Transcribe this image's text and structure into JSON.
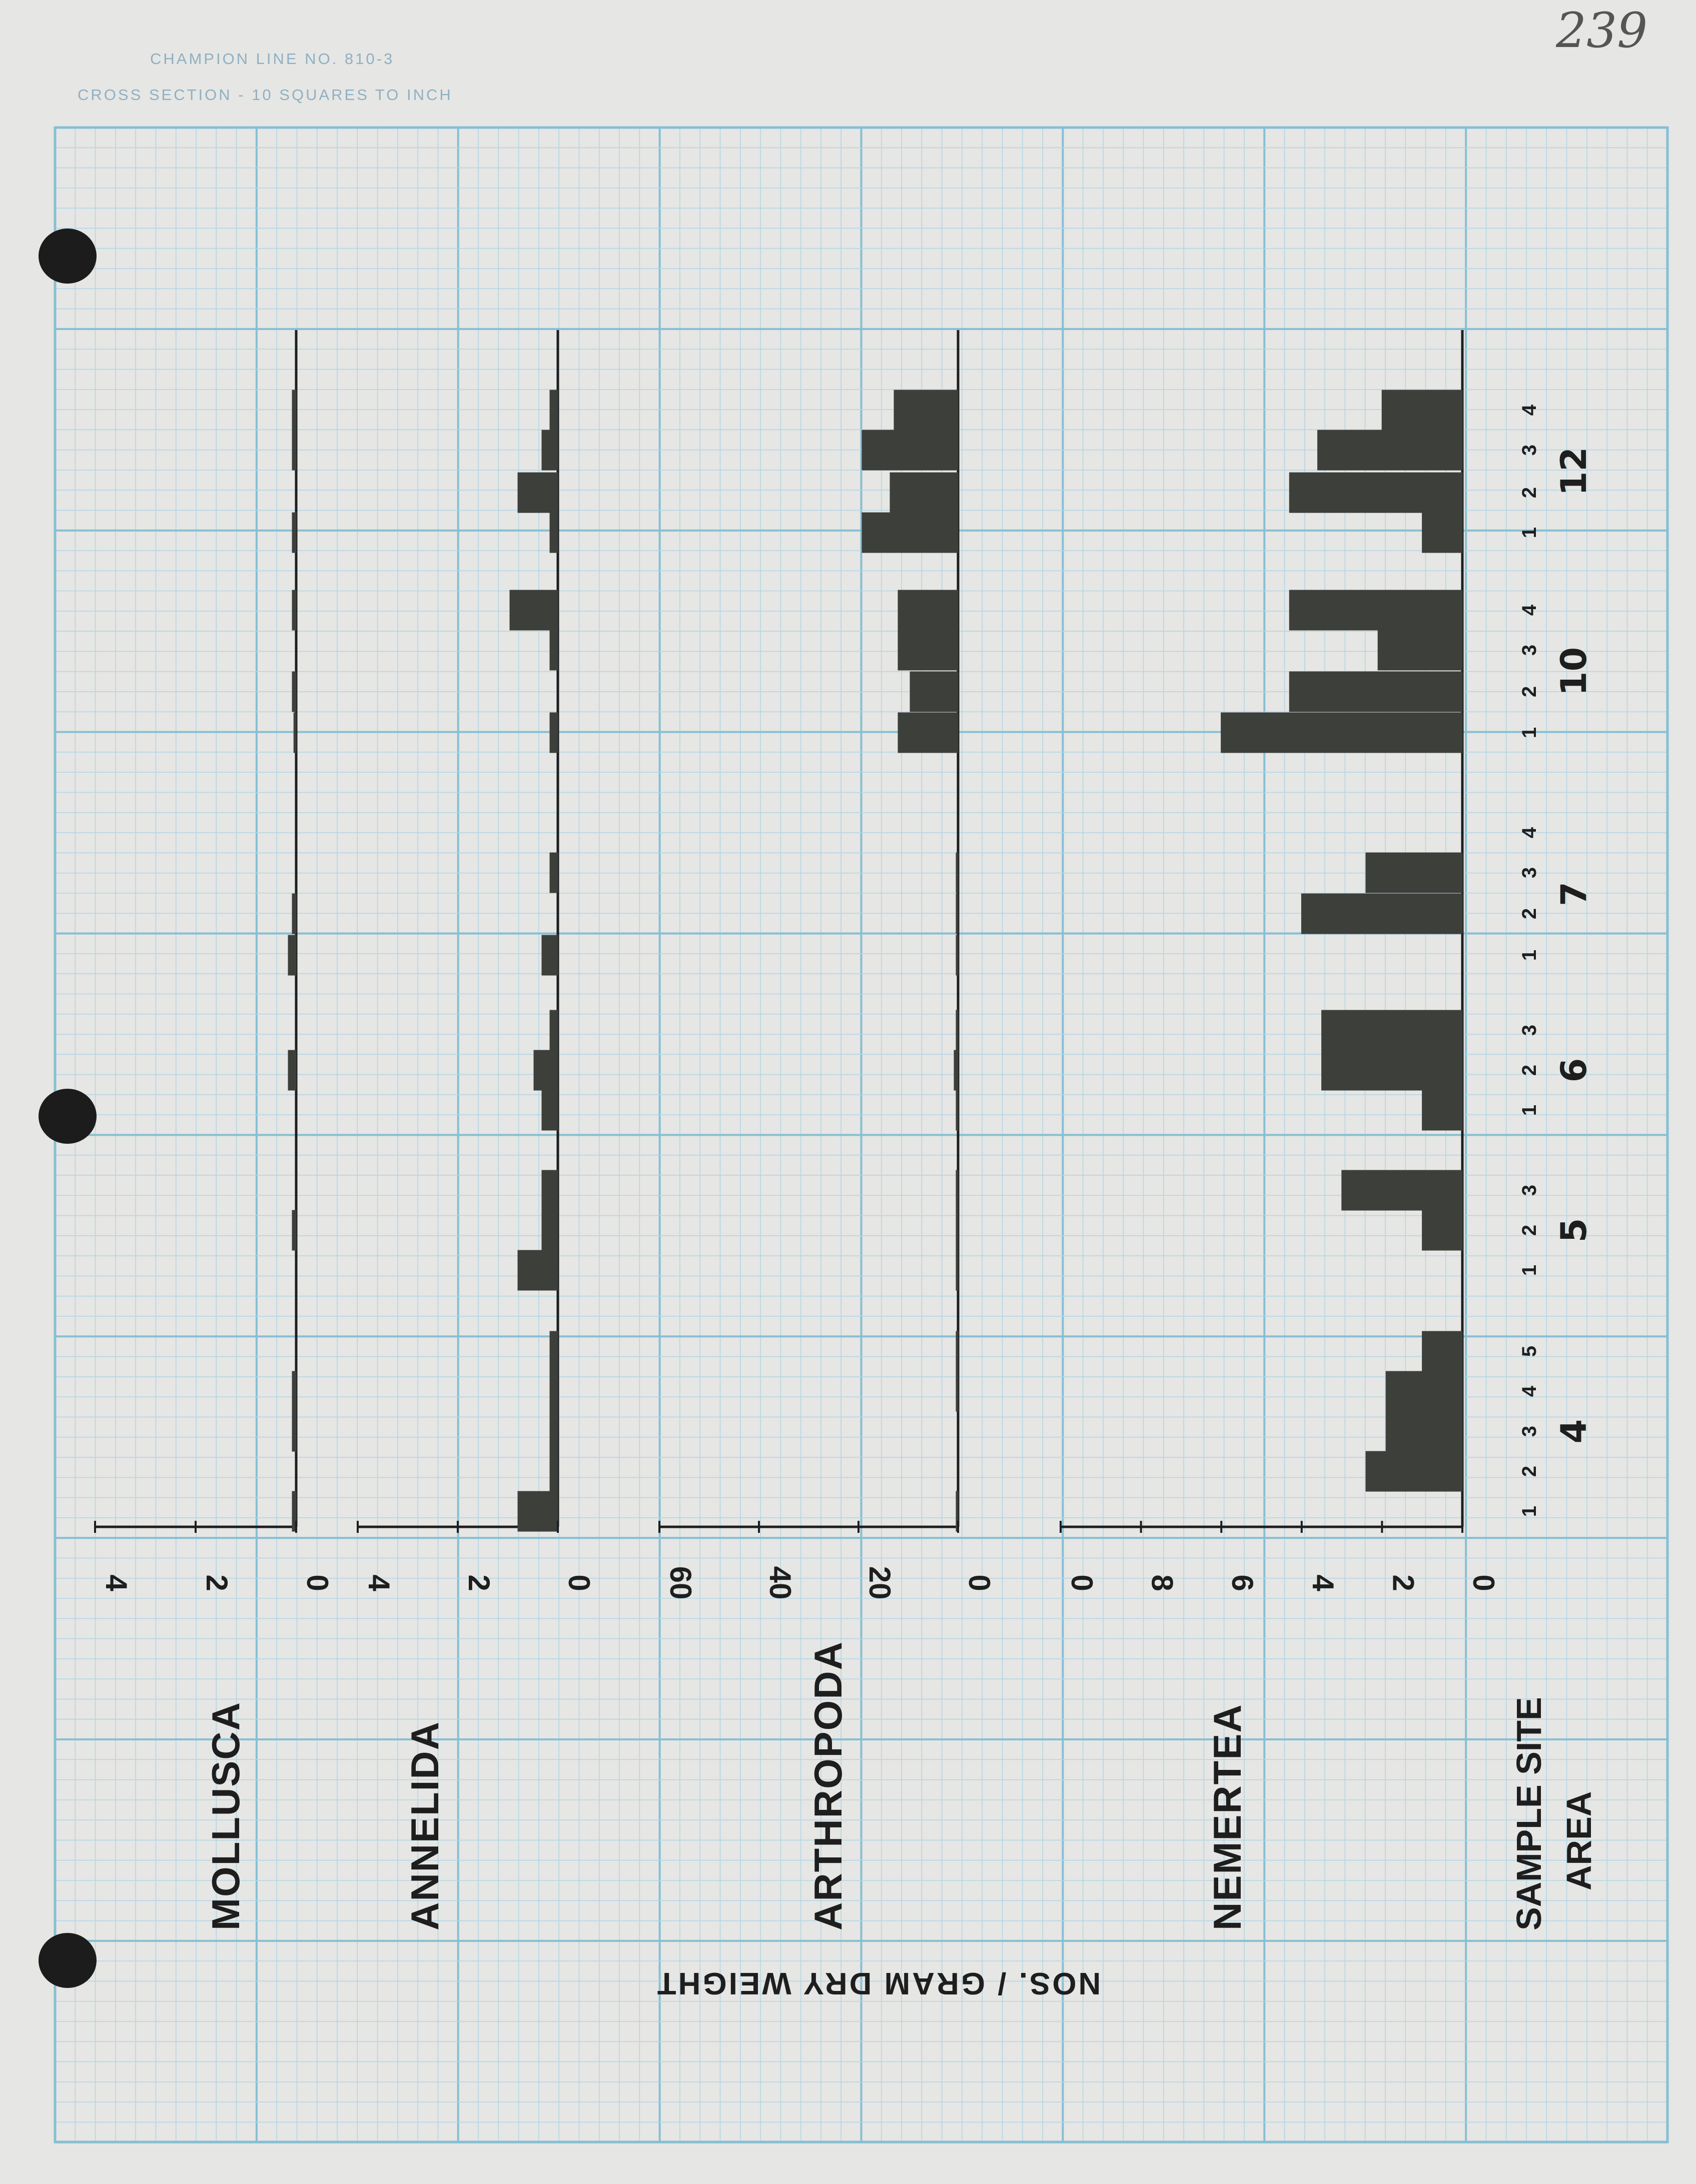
{
  "header": {
    "line1": "CHAMPION LINE NO. 810-3",
    "line2": "CROSS SECTION - 10 SQUARES TO INCH",
    "page_number": "239"
  },
  "colors": {
    "paper": "#e6e6e4",
    "grid_minor": "#b3d6e3",
    "grid_major": "#86bfd3",
    "ink": "#1e1e1e",
    "bar_fill": "#3d3f3b"
  },
  "y_axis_label": "NOS. / GRAM DRY WEIGHT",
  "x_axis": {
    "label_line1": "SAMPLE SITE",
    "label_line2": "AREA"
  },
  "chart_data": {
    "type": "bar",
    "orientation": "rotated-90",
    "y_axis_label": "NOS. / GRAM DRY WEIGHT",
    "x_axis_label": "SAMPLE SITE / AREA",
    "areas": [
      {
        "area": "4",
        "sites": [
          "1",
          "2",
          "3",
          "4",
          "5"
        ]
      },
      {
        "area": "5",
        "sites": [
          "1",
          "2",
          "3"
        ]
      },
      {
        "area": "6",
        "sites": [
          "1",
          "2",
          "3"
        ]
      },
      {
        "area": "7",
        "sites": [
          "1",
          "2",
          "3",
          "4"
        ]
      },
      {
        "area": "10",
        "sites": [
          "1",
          "2",
          "3",
          "4"
        ]
      },
      {
        "area": "12",
        "sites": [
          "1",
          "2",
          "3",
          "4"
        ]
      }
    ],
    "panels": [
      {
        "name": "MOLLUSCA",
        "ticks": [
          "4",
          "2",
          "0"
        ],
        "ylim": [
          0,
          4
        ],
        "values": {
          "4": [
            0.05,
            0,
            0.05,
            0.05,
            0
          ],
          "5": [
            0,
            0.05,
            0
          ],
          "6": [
            0,
            0.1,
            0
          ],
          "7": [
            0.1,
            0.05,
            0,
            0
          ],
          "10": [
            0.03,
            0.05,
            0,
            0.05
          ],
          "12": [
            0.05,
            0,
            0.05,
            0.05
          ]
        }
      },
      {
        "name": "ANNELIDA",
        "ticks": [
          "4",
          "2",
          "0"
        ],
        "ylim": [
          0,
          4
        ],
        "values": {
          "4": [
            0.5,
            0.1,
            0.1,
            0.1,
            0.1
          ],
          "5": [
            0.5,
            0.2,
            0.2
          ],
          "6": [
            0.2,
            0.3,
            0.1
          ],
          "7": [
            0.2,
            0,
            0.1,
            0
          ],
          "10": [
            0.1,
            0,
            0.1,
            0.6
          ],
          "12": [
            0.1,
            0.5,
            0.2,
            0.1
          ]
        }
      },
      {
        "name": "ARTHROPODA",
        "ticks": [
          "60",
          "40",
          "20",
          "0"
        ],
        "ylim": [
          0,
          70
        ],
        "values": {
          "4": [
            0.2,
            0,
            0,
            0.3,
            0.2
          ],
          "5": [
            0.2,
            0.3,
            0.2
          ],
          "6": [
            0.5,
            1,
            0.5
          ],
          "7": [
            0.3,
            0.3,
            0.5,
            0
          ],
          "10": [
            15,
            12,
            15,
            15
          ],
          "12": [
            24,
            17,
            24,
            16
          ]
        }
      },
      {
        "name": "NEMERTEA",
        "ticks": [
          "0",
          "8",
          "6",
          "4",
          "2",
          "0"
        ],
        "ylim": [
          0,
          10
        ],
        "values": {
          "4": [
            0,
            2.4,
            1.9,
            1.9,
            1.0
          ],
          "5": [
            0,
            1.0,
            3.0
          ],
          "6": [
            1.0,
            3.5,
            3.5
          ],
          "7": [
            0,
            4.0,
            2.4,
            0
          ],
          "10": [
            6.0,
            4.3,
            2.1,
            4.3
          ],
          "12": [
            1.0,
            4.3,
            3.6,
            2.0
          ]
        }
      }
    ]
  }
}
